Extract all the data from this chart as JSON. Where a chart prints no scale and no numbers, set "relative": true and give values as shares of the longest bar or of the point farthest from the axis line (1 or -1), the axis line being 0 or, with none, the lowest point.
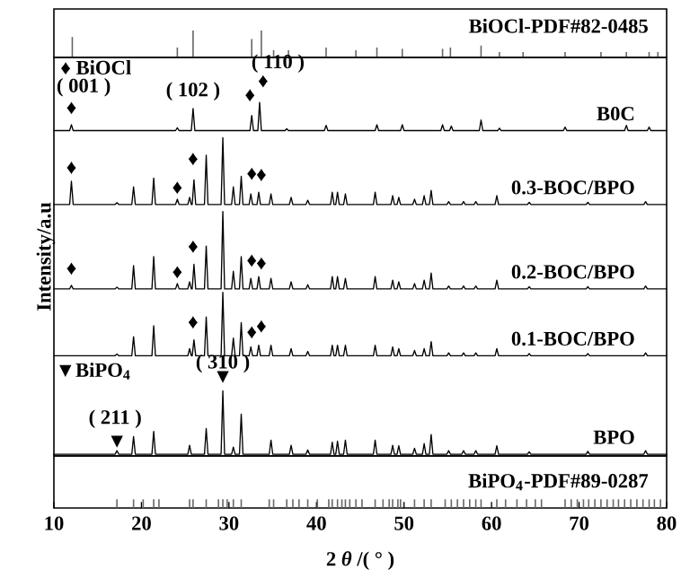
{
  "chart_data": [
    {
      "type": "bar",
      "relative": true,
      "xlim": [
        10,
        80
      ],
      "series": [
        {
          "name": "BiOCl-PDF#82-0485",
          "color": "#666666",
          "x": [
            12.1,
            24.1,
            25.9,
            32.6,
            33.7,
            35.1,
            36.8,
            41.1,
            44.5,
            46.9,
            49.8,
            54.4,
            55.3,
            58.8,
            60.9,
            63.6,
            68.4,
            72.5,
            75.4,
            78.0,
            79.0
          ],
          "values": [
            0.76,
            0.37,
            1,
            0.68,
            1,
            0.27,
            0.27,
            0.37,
            0.27,
            0.37,
            0.32,
            0.32,
            0.37,
            0.44,
            0.2,
            0.2,
            0.2,
            0.2,
            0.2,
            0.2,
            0.2
          ]
        }
      ]
    },
    {
      "type": "line",
      "relative": true,
      "xlim": [
        10,
        80
      ],
      "ylabel": "Intensity/a.u",
      "x": [
        10,
        11.8,
        12.0,
        12.2,
        17.0,
        17.2,
        17.4,
        18.9,
        19.1,
        19.3,
        21.2,
        21.4,
        21.6,
        23.9,
        24.1,
        24.3,
        25.3,
        25.5,
        25.7,
        25.8,
        26.0,
        26.2,
        27.2,
        27.4,
        27.6,
        29.1,
        29.3,
        29.5,
        30.3,
        30.5,
        30.7,
        31.2,
        31.4,
        31.6,
        32.3,
        32.5,
        32.7,
        33.2,
        33.4,
        33.6,
        34.6,
        34.8,
        35.0,
        36.9,
        37.1,
        37.3,
        38.8,
        39.0,
        39.2,
        41.6,
        41.8,
        42.0,
        42.2,
        42.4,
        42.6,
        43.1,
        43.3,
        43.5,
        46.5,
        46.7,
        46.9,
        48.5,
        48.7,
        48.9,
        49.2,
        49.4,
        49.6,
        51.0,
        51.2,
        51.4,
        52.1,
        52.3,
        52.5,
        52.9,
        53.1,
        53.3,
        54.9,
        55.1,
        55.3,
        56.6,
        56.8,
        57.0,
        58.0,
        58.2,
        58.4,
        60.4,
        60.6,
        60.8,
        64.1,
        64.3,
        64.5,
        70.8,
        71.0,
        71.2,
        77.4,
        77.6,
        77.8,
        80
      ],
      "series": [
        {
          "name": "B0C",
          "color": "#000000",
          "x": [
            10,
            11.8,
            12.0,
            12.2,
            23.9,
            24.1,
            24.3,
            25.7,
            25.9,
            26.1,
            32.4,
            32.6,
            32.8,
            33.3,
            33.5,
            33.7,
            36.4,
            36.6,
            36.8,
            40.9,
            41.1,
            41.3,
            46.7,
            46.9,
            47.1,
            49.6,
            49.8,
            50.0,
            54.2,
            54.4,
            54.6,
            55.2,
            55.4,
            55.6,
            58.6,
            58.8,
            59.0,
            60.7,
            60.9,
            61.1,
            68.2,
            68.4,
            68.6,
            75.2,
            75.4,
            75.6,
            77.8,
            78.0,
            78.2,
            80
          ],
          "values": [
            0.92,
            0.92,
            0.937,
            0.92,
            0.92,
            0.928,
            0.92,
            0.92,
            0.983,
            0.92,
            0.92,
            0.963,
            0.92,
            0.92,
            1.0,
            0.92,
            0.92,
            0.925,
            0.92,
            0.92,
            0.935,
            0.92,
            0.92,
            0.937,
            0.92,
            0.92,
            0.937,
            0.92,
            0.92,
            0.937,
            0.92,
            0.92,
            0.933,
            0.92,
            0.92,
            0.95,
            0.92,
            0.92,
            0.927,
            0.92,
            0.92,
            0.93,
            0.92,
            0.92,
            0.935,
            0.92,
            0.92,
            0.93,
            0.92,
            0.92
          ]
        },
        {
          "name": "0.3-BOC/BPO",
          "color": "#000000",
          "values": [
            0.71,
            0.71,
            0.776,
            0.71,
            0.71,
            0.715,
            0.71,
            0.71,
            0.76,
            0.71,
            0.71,
            0.785,
            0.71,
            0.71,
            0.725,
            0.71,
            0.71,
            0.73,
            0.71,
            0.71,
            0.78,
            0.71,
            0.71,
            0.85,
            0.71,
            0.71,
            0.9,
            0.71,
            0.71,
            0.76,
            0.71,
            0.71,
            0.79,
            0.71,
            0.71,
            0.74,
            0.71,
            0.71,
            0.745,
            0.71,
            0.71,
            0.74,
            0.71,
            0.71,
            0.73,
            0.71,
            0.71,
            0.722,
            0.71,
            0.71,
            0.745,
            0.71,
            0.71,
            0.745,
            0.71,
            0.71,
            0.74,
            0.71,
            0.71,
            0.745,
            0.71,
            0.71,
            0.735,
            0.71,
            0.71,
            0.73,
            0.71,
            0.71,
            0.725,
            0.71,
            0.71,
            0.735,
            0.71,
            0.71,
            0.75,
            0.71,
            0.71,
            0.718,
            0.71,
            0.71,
            0.718,
            0.71,
            0.71,
            0.718,
            0.71,
            0.71,
            0.735,
            0.71,
            0.71,
            0.716,
            0.71,
            0.71,
            0.716,
            0.71,
            0.71,
            0.718,
            0.71,
            0.71
          ]
        },
        {
          "name": "0.2-BOC/BPO",
          "color": "#000000",
          "values": [
            0.47,
            0.47,
            0.48,
            0.47,
            0.47,
            0.475,
            0.47,
            0.47,
            0.536,
            0.47,
            0.47,
            0.562,
            0.47,
            0.47,
            0.485,
            0.47,
            0.47,
            0.49,
            0.47,
            0.47,
            0.54,
            0.47,
            0.47,
            0.592,
            0.47,
            0.47,
            0.69,
            0.47,
            0.47,
            0.52,
            0.47,
            0.47,
            0.562,
            0.47,
            0.47,
            0.5,
            0.47,
            0.47,
            0.505,
            0.47,
            0.47,
            0.5,
            0.47,
            0.47,
            0.49,
            0.47,
            0.47,
            0.482,
            0.47,
            0.47,
            0.505,
            0.47,
            0.47,
            0.505,
            0.47,
            0.47,
            0.5,
            0.47,
            0.47,
            0.505,
            0.47,
            0.47,
            0.495,
            0.47,
            0.47,
            0.49,
            0.47,
            0.47,
            0.485,
            0.47,
            0.47,
            0.495,
            0.47,
            0.47,
            0.515,
            0.47,
            0.47,
            0.478,
            0.47,
            0.47,
            0.478,
            0.47,
            0.47,
            0.478,
            0.47,
            0.47,
            0.495,
            0.47,
            0.47,
            0.476,
            0.47,
            0.47,
            0.476,
            0.47,
            0.47,
            0.478,
            0.47,
            0.47
          ]
        },
        {
          "name": "0.1-BOC/BPO",
          "color": "#000000",
          "values": [
            0.28,
            0.28,
            0.28,
            0.28,
            0.28,
            0.285,
            0.28,
            0.28,
            0.334,
            0.28,
            0.28,
            0.365,
            0.28,
            0.28,
            0.28,
            0.28,
            0.28,
            0.3,
            0.28,
            0.28,
            0.325,
            0.28,
            0.28,
            0.39,
            0.28,
            0.28,
            0.46,
            0.28,
            0.28,
            0.33,
            0.28,
            0.28,
            0.374,
            0.28,
            0.28,
            0.305,
            0.28,
            0.28,
            0.31,
            0.28,
            0.28,
            0.31,
            0.28,
            0.28,
            0.3,
            0.28,
            0.28,
            0.292,
            0.28,
            0.28,
            0.31,
            0.28,
            0.28,
            0.31,
            0.28,
            0.28,
            0.31,
            0.28,
            0.28,
            0.31,
            0.28,
            0.28,
            0.305,
            0.28,
            0.28,
            0.3,
            0.28,
            0.28,
            0.295,
            0.28,
            0.28,
            0.3,
            0.28,
            0.28,
            0.32,
            0.28,
            0.28,
            0.288,
            0.28,
            0.28,
            0.288,
            0.28,
            0.28,
            0.288,
            0.28,
            0.28,
            0.3,
            0.28,
            0.28,
            0.286,
            0.28,
            0.28,
            0.286,
            0.28,
            0.28,
            0.288,
            0.28,
            0.28
          ]
        },
        {
          "name": "BPO",
          "color": "#000000",
          "values": [
            0,
            0,
            0,
            0,
            0,
            0.01,
            0,
            0,
            0.05,
            0,
            0,
            0.065,
            0,
            0,
            0,
            0,
            0,
            0.025,
            0,
            0,
            0,
            0,
            0,
            0.073,
            0,
            0,
            0.18,
            0,
            0,
            0.02,
            0,
            0,
            0.114,
            0,
            0,
            0,
            0,
            0,
            0,
            0,
            0,
            0.04,
            0,
            0,
            0.025,
            0,
            0,
            0.012,
            0,
            0,
            0.034,
            0,
            0,
            0.037,
            0,
            0,
            0.04,
            0,
            0,
            0.04,
            0,
            0,
            0.025,
            0,
            0,
            0.024,
            0,
            0,
            0.017,
            0,
            0,
            0.03,
            0,
            0,
            0.056,
            0,
            0,
            0.01,
            0,
            0,
            0.01,
            0,
            0,
            0.01,
            0,
            0,
            0.024,
            0,
            0,
            0.007,
            0,
            0,
            0.008,
            0,
            0,
            0.01,
            0,
            0
          ]
        }
      ],
      "annotations": [
        "♦ BiOCl",
        "( 001 )",
        "( 102 )",
        "( 110 )",
        "♦",
        "♦",
        "♦",
        "♦",
        "♦",
        "♦",
        "♦",
        "♦",
        "♦",
        "♦",
        "♦",
        "♦",
        "♦",
        "♦",
        "♦",
        "♦",
        "▼BiPO$_{4}$",
        "( 310 )",
        "▼",
        "( 211 )",
        "▼"
      ]
    },
    {
      "type": "bar",
      "relative": true,
      "xlim": [
        10,
        80
      ],
      "xticks": [
        10,
        20,
        30,
        40,
        50,
        60,
        70,
        80
      ],
      "xlabel": "2 *θ* /( ° )",
      "series": [
        {
          "name": "BiPO$_{4}$-PDF#89-0287",
          "color": "#666666",
          "x": [
            17.2,
            19.1,
            20.2,
            21.4,
            22.0,
            25.5,
            25.9,
            27.4,
            28.8,
            29.3,
            29.8,
            30.5,
            31.4,
            34.6,
            35.1,
            36.6,
            37.3,
            38.0,
            39.0,
            40.1,
            41.4,
            41.8,
            42.4,
            42.9,
            43.3,
            43.8,
            44.5,
            45.2,
            46.7,
            47.6,
            48.3,
            48.7,
            49.3,
            49.6,
            51.2,
            52.3,
            53.1,
            54.7,
            55.4,
            56.1,
            56.8,
            57.5,
            58.2,
            58.8,
            60.6,
            61.6,
            62.9,
            64.0,
            65.0,
            65.7,
            68.4,
            69.1,
            69.8,
            70.5,
            71.1,
            71.8,
            72.5,
            73.2,
            73.9,
            74.5,
            75.2,
            75.9,
            76.6,
            77.3,
            78.0,
            78.6,
            79.3
          ],
          "values": [
            1,
            1,
            1,
            1,
            1,
            1,
            1,
            1,
            1,
            1,
            1,
            1,
            1,
            1,
            1,
            1,
            1,
            1,
            1,
            1,
            1,
            1,
            1,
            1,
            1,
            1,
            1,
            1,
            1,
            1,
            1,
            1,
            1,
            1,
            1,
            1,
            1,
            1,
            1,
            1,
            1,
            1,
            1,
            1,
            1,
            1,
            1,
            1,
            1,
            1,
            1,
            1,
            1,
            1,
            1,
            1,
            1,
            1,
            1,
            1,
            1,
            1,
            1,
            1,
            1,
            1,
            1
          ]
        }
      ]
    }
  ]
}
